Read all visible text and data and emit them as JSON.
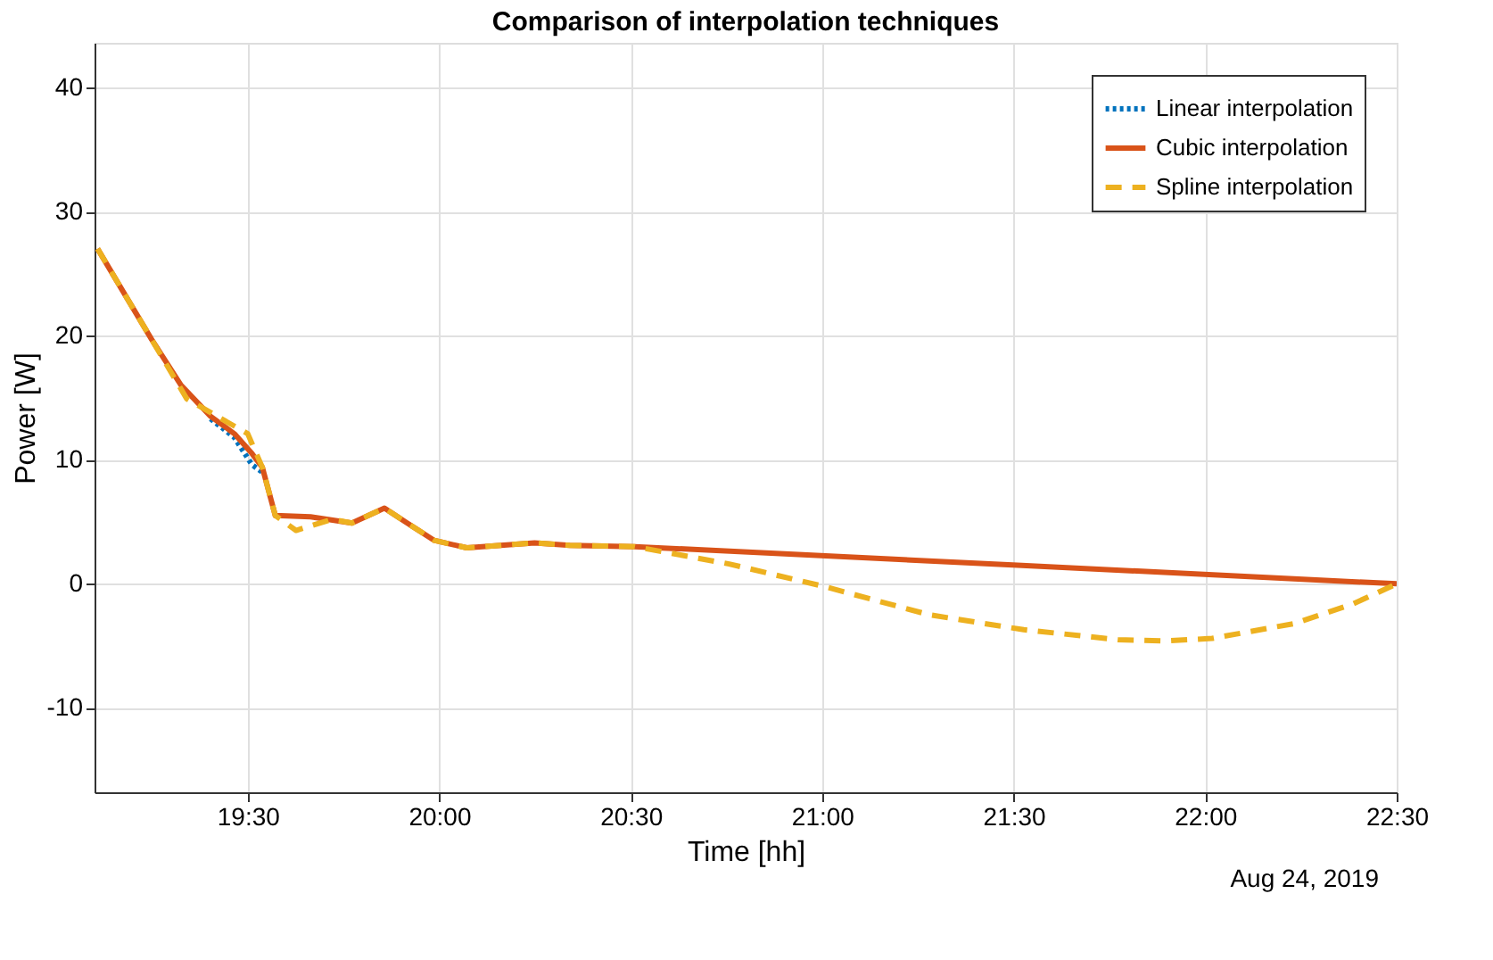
{
  "chart_data": {
    "type": "line",
    "title": "Comparison of interpolation techniques",
    "xlabel": "Time [hh]",
    "ylabel": "Power [W]",
    "xlim": [
      19.1,
      22.5
    ],
    "xticks": [
      {
        "value": 19.5,
        "label": "19:30"
      },
      {
        "value": 20.0,
        "label": "20:00"
      },
      {
        "value": 20.5,
        "label": "20:30"
      },
      {
        "value": 21.0,
        "label": "21:00"
      },
      {
        "value": 21.5,
        "label": "21:30"
      },
      {
        "value": 22.0,
        "label": "22:00"
      },
      {
        "value": 22.5,
        "label": "22:30"
      }
    ],
    "ylim": [
      -16.8,
      43.6
    ],
    "yticks": [
      -10,
      0,
      10,
      20,
      30,
      40
    ],
    "grid": true,
    "legend": "top right",
    "marker": "none",
    "annotations": [
      "Aug 24, 2019"
    ],
    "series": [
      {
        "name": "Linear interpolation",
        "color": "#0072bd",
        "line_style": "dotted",
        "x": [
          19.403,
          19.465,
          19.511,
          19.538
        ],
        "values": [
          13.3,
          11.8,
          9.6,
          9.0
        ]
      },
      {
        "name": "Cubic interpolation",
        "color": "#d95319",
        "line_style": "solid",
        "x": [
          19.108,
          19.249,
          19.326,
          19.403,
          19.465,
          19.511,
          19.538,
          19.572,
          19.664,
          19.772,
          19.857,
          19.911,
          19.987,
          20.072,
          20.249,
          20.341,
          20.51,
          21.51,
          22.5
        ],
        "values": [
          27.0,
          19.7,
          16.0,
          13.5,
          12.1,
          10.5,
          9.4,
          5.5,
          5.4,
          4.9,
          6.1,
          5.0,
          3.5,
          2.9,
          3.3,
          3.1,
          3.0,
          1.5,
          0.0
        ]
      },
      {
        "name": "Spline interpolation",
        "color": "#edb120",
        "line_style": "dashed",
        "x": [
          19.108,
          19.249,
          19.341,
          19.42,
          19.5,
          19.538,
          19.572,
          19.626,
          19.72,
          19.772,
          19.857,
          19.911,
          19.987,
          20.072,
          20.249,
          20.341,
          20.51,
          20.757,
          21.003,
          21.28,
          21.526,
          21.772,
          21.895,
          22.018,
          22.233,
          22.387,
          22.5
        ],
        "values": [
          27.0,
          19.7,
          14.9,
          13.5,
          12.1,
          9.4,
          5.5,
          4.3,
          5.2,
          4.9,
          6.1,
          5.0,
          3.5,
          2.9,
          3.3,
          3.1,
          3.0,
          1.6,
          -0.2,
          -2.5,
          -3.7,
          -4.5,
          -4.6,
          -4.4,
          -3.2,
          -1.6,
          0.0
        ]
      }
    ]
  }
}
